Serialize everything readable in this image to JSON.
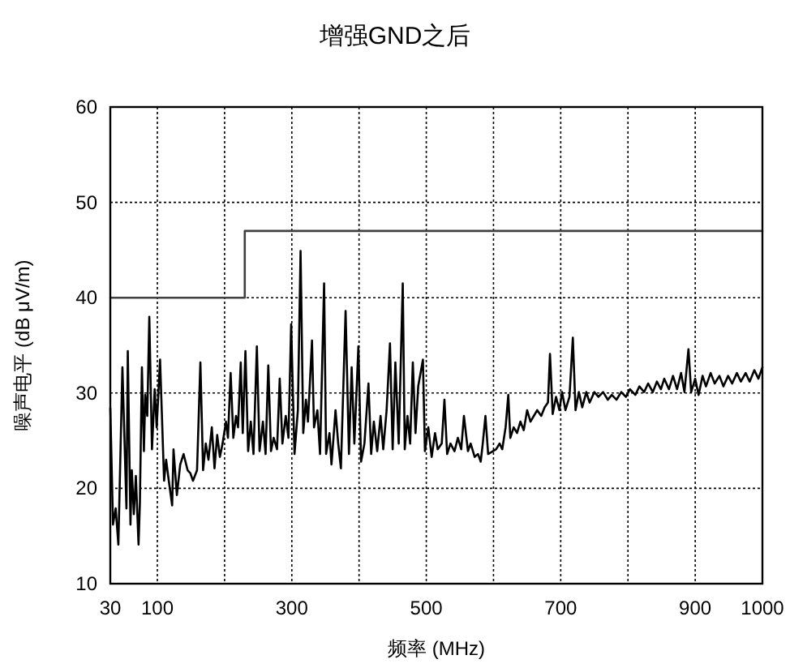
{
  "chart_data": {
    "type": "line",
    "title": "增强GND之后",
    "xlabel": "频率 (MHz)",
    "ylabel": "噪声电平 (dB μV/m)",
    "xlim": [
      30,
      1000
    ],
    "ylim": [
      10,
      60
    ],
    "xticks": [
      30,
      100,
      {
        "value": 200,
        "label": null
      },
      300,
      {
        "value": 400,
        "label": null
      },
      500,
      {
        "value": 600,
        "label": null
      },
      700,
      {
        "value": 800,
        "label": null
      },
      900,
      1000
    ],
    "yticks": [
      10,
      20,
      30,
      40,
      50,
      60
    ],
    "grid": true,
    "series": [
      {
        "type": "step",
        "color": "#404040",
        "x": [
          30,
          230,
          1000
        ],
        "values": [
          40,
          47,
          47
        ]
      },
      {
        "color": "#000000",
        "x": [
          30,
          34,
          38,
          42,
          48,
          54,
          56,
          60,
          62,
          65,
          68,
          72,
          74,
          77,
          80,
          82,
          85,
          88,
          92,
          96,
          99,
          104,
          110,
          113,
          117,
          122,
          124,
          129,
          134,
          139,
          145,
          149,
          153,
          159,
          164,
          168,
          172,
          176,
          181,
          185,
          189,
          193,
          197,
          202,
          205,
          209,
          213,
          217,
          220,
          224,
          227,
          231,
          235,
          239,
          243,
          248,
          252,
          257,
          261,
          265,
          269,
          273,
          278,
          282,
          286,
          291,
          295,
          299,
          304,
          309,
          313,
          317,
          321,
          324,
          330,
          333,
          338,
          342,
          348,
          351,
          356,
          359,
          365,
          369,
          373,
          380,
          385,
          389,
          393,
          399,
          403,
          408,
          414,
          418,
          422,
          427,
          432,
          436,
          441,
          446,
          450,
          454,
          459,
          465,
          468,
          472,
          476,
          480,
          484,
          488,
          495,
          498,
          503,
          508,
          513,
          517,
          523,
          527,
          531,
          536,
          542,
          547,
          552,
          556,
          562,
          566,
          572,
          577,
          581,
          584,
          588,
          592,
          599,
          604,
          609,
          613,
          618,
          622,
          625,
          630,
          635,
          640,
          645,
          650,
          655,
          660,
          665,
          671,
          676,
          681,
          684,
          688,
          693,
          698,
          702,
          707,
          713,
          718,
          722,
          727,
          732,
          738,
          743,
          750,
          756,
          763,
          770,
          776,
          783,
          790,
          797,
          803,
          811,
          817,
          824,
          830,
          837,
          843,
          849,
          854,
          861,
          867,
          873,
          879,
          884,
          890,
          894,
          900,
          905,
          911,
          916,
          923,
          929,
          936,
          942,
          949,
          955,
          962,
          968,
          975,
          981,
          988,
          994,
          1000
        ],
        "values": [
          28.4,
          16.2,
          17.9,
          14.1,
          32.7,
          17.9,
          34.4,
          16.2,
          21.9,
          17.3,
          21.3,
          14.1,
          18.5,
          32.7,
          23.9,
          29.8,
          27.6,
          38.0,
          24.1,
          30.4,
          26.4,
          33.5,
          20.8,
          23.0,
          20.8,
          18.2,
          24.1,
          19.3,
          22.5,
          23.6,
          21.9,
          21.6,
          20.8,
          21.9,
          33.2,
          21.9,
          24.7,
          23.0,
          26.4,
          22.1,
          25.6,
          23.3,
          24.7,
          27.0,
          25.3,
          32.1,
          25.3,
          27.6,
          26.4,
          33.2,
          25.8,
          34.4,
          23.9,
          27.0,
          23.6,
          34.9,
          23.9,
          27.0,
          23.6,
          32.9,
          23.9,
          25.3,
          24.1,
          31.5,
          24.7,
          27.6,
          25.3,
          37.2,
          23.6,
          28.2,
          44.9,
          25.8,
          29.3,
          27.0,
          35.5,
          26.4,
          28.2,
          23.6,
          41.5,
          23.6,
          25.8,
          22.5,
          28.2,
          24.7,
          22.1,
          38.6,
          23.6,
          32.7,
          24.7,
          34.9,
          22.8,
          24.7,
          31.0,
          23.6,
          27.0,
          23.9,
          27.6,
          24.1,
          28.2,
          35.2,
          24.1,
          33.2,
          24.7,
          41.5,
          24.1,
          27.6,
          24.7,
          33.2,
          25.8,
          30.7,
          33.5,
          23.9,
          26.4,
          23.3,
          25.8,
          24.1,
          24.7,
          29.3,
          23.6,
          24.7,
          23.9,
          25.3,
          24.1,
          27.6,
          23.9,
          24.7,
          23.3,
          23.6,
          22.8,
          24.7,
          27.6,
          23.6,
          23.9,
          24.1,
          24.7,
          24.1,
          26.4,
          29.8,
          25.3,
          26.4,
          25.8,
          27.0,
          26.1,
          28.2,
          27.0,
          27.6,
          28.2,
          27.6,
          28.5,
          29.0,
          34.1,
          27.8,
          29.6,
          28.2,
          30.1,
          28.2,
          29.6,
          35.8,
          28.2,
          30.1,
          28.5,
          30.1,
          29.0,
          30.1,
          29.6,
          30.1,
          29.3,
          29.8,
          29.3,
          30.1,
          29.6,
          30.4,
          29.8,
          30.7,
          30.1,
          31.0,
          30.1,
          31.2,
          30.4,
          31.5,
          30.4,
          31.8,
          30.4,
          32.1,
          30.1,
          34.6,
          30.1,
          31.5,
          29.8,
          31.8,
          30.7,
          32.1,
          31.0,
          31.8,
          30.7,
          31.8,
          31.0,
          32.1,
          31.2,
          32.1,
          31.2,
          32.4,
          31.5,
          32.7
        ]
      }
    ]
  }
}
